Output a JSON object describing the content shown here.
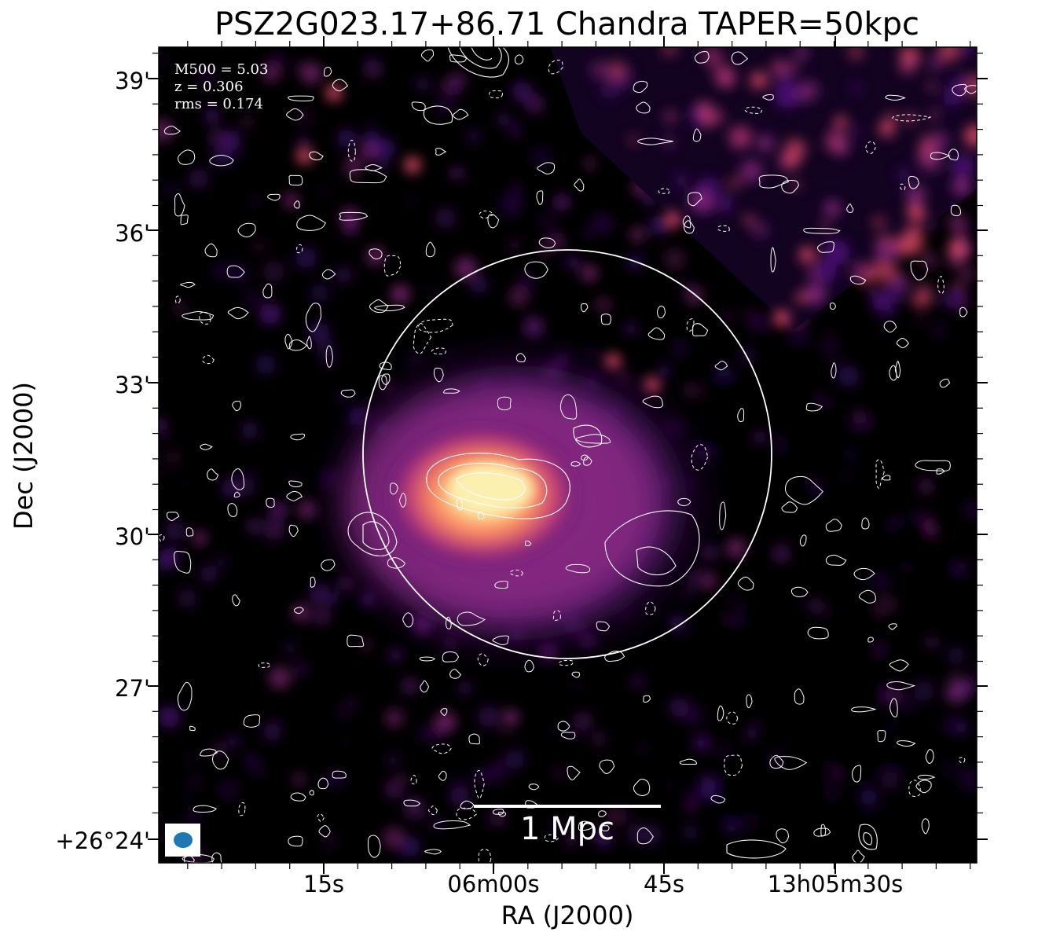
{
  "title": "PSZ2G023.17+86.71 Chandra TAPER=50kpc",
  "info": {
    "m500": "M500 = 5.03",
    "z": "z = 0.306",
    "rms": "rms = 0.174"
  },
  "axes": {
    "x_title": "RA (J2000)",
    "y_title": "Dec (J2000)",
    "x_ticks": [
      "15s",
      "06m00s",
      "45s",
      "13h05m30s"
    ],
    "y_ticks": [
      "39'",
      "36'",
      "33'",
      "30'",
      "27'",
      "+26°24'"
    ]
  },
  "scalebar": {
    "label": "1 Mpc"
  },
  "colors": {
    "background": "#000000",
    "contour": "#ffffff",
    "beam": "#1f77b4",
    "colormap": [
      "#000000",
      "#3b0f70",
      "#8c2981",
      "#de4968",
      "#fe9f6d",
      "#fcfdbf"
    ]
  }
}
